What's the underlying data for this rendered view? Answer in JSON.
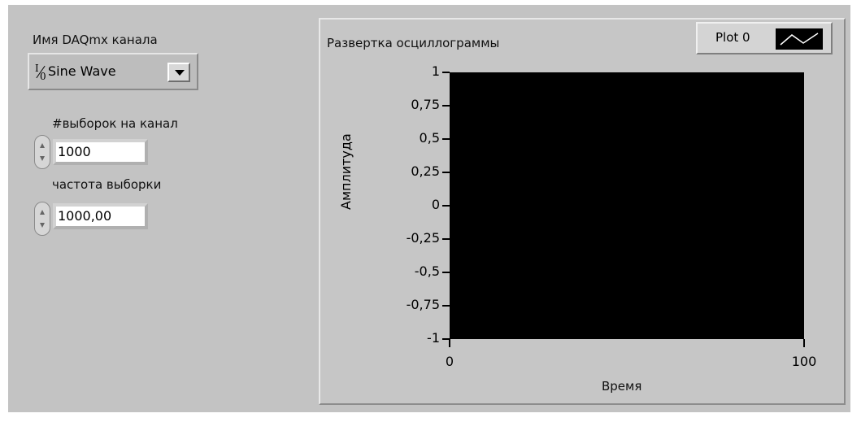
{
  "channel": {
    "label": "Имя DAQmx канала",
    "value": "Sine Wave"
  },
  "samples": {
    "label": "#выборок на канал",
    "value": "1000"
  },
  "rate": {
    "label": "частота выборки",
    "value": "1000,00"
  },
  "chart": {
    "title": "Развертка осциллограммы",
    "legend": "Plot 0",
    "plot_background": "#000000",
    "panel_color": "#c3c3c3"
  },
  "chart_data": {
    "type": "line",
    "title": "Развертка осциллограммы",
    "xlabel": "Время",
    "ylabel": "Амплитуда",
    "xlim": [
      0,
      100
    ],
    "ylim": [
      -1,
      1
    ],
    "x_ticks": [
      "0",
      "100"
    ],
    "y_ticks": [
      "1",
      "0,75",
      "0,5",
      "0,25",
      "0",
      "-0,25",
      "-0,5",
      "-0,75",
      "-1"
    ],
    "series": [
      {
        "name": "Plot 0",
        "x": [],
        "y": []
      }
    ],
    "grid": false,
    "legend": "top-right"
  }
}
